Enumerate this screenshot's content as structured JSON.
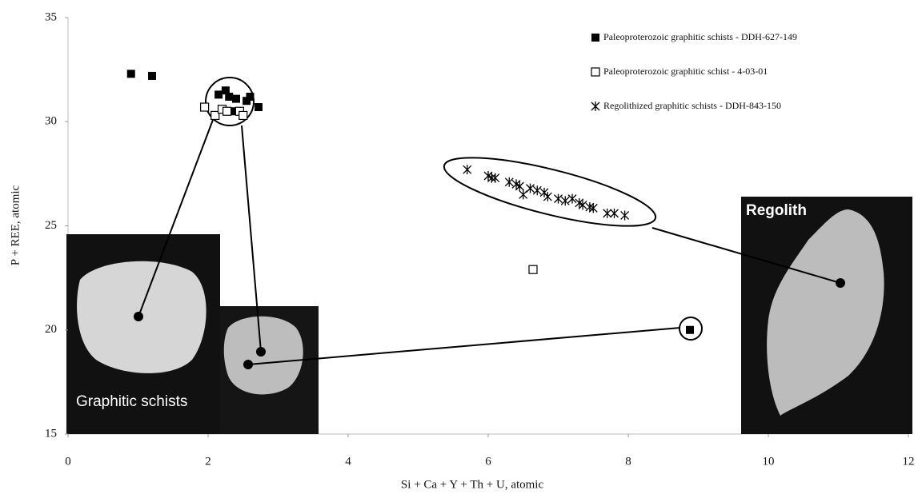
{
  "chart_data": {
    "type": "scatter",
    "x_label": "Si + Ca + Y + Th + U, atomic",
    "y_label": "P + REE, atomic",
    "xlim": [
      0,
      12
    ],
    "ylim": [
      15,
      35
    ],
    "xticks": [
      0,
      2,
      4,
      6,
      8,
      10,
      12
    ],
    "yticks": [
      15,
      20,
      25,
      30,
      35
    ],
    "grid": false,
    "legend": "top-right",
    "annotations": [
      "Graphitic  schists",
      "Regolith"
    ],
    "series": [
      {
        "name": "Paleoproterozoic graphitic schists - DDH-627-149",
        "color": "#000000",
        "marker": "filled-square",
        "x": [
          0.9,
          1.2,
          2.15,
          2.25,
          2.3,
          2.4,
          2.55,
          2.6,
          2.72,
          2.2,
          2.35,
          8.88
        ],
        "y": [
          32.3,
          32.2,
          31.3,
          31.5,
          31.2,
          31.1,
          31.0,
          31.2,
          30.7,
          30.6,
          30.5,
          20.0
        ]
      },
      {
        "name": "Paleoproterozoic graphitic schist - 4-03-01",
        "color": "#000000",
        "marker": "open-square",
        "x": [
          1.95,
          2.1,
          2.2,
          2.27,
          2.45,
          2.5,
          6.64
        ],
        "y": [
          30.7,
          30.3,
          30.6,
          30.5,
          30.5,
          30.3,
          22.9
        ]
      },
      {
        "name": "Regolithized graphitic schists - DDH-843-150",
        "color": "#000000",
        "marker": "asterisk",
        "x": [
          5.7,
          6.0,
          6.05,
          6.1,
          6.3,
          6.4,
          6.45,
          6.5,
          6.6,
          6.7,
          6.8,
          6.85,
          7.0,
          7.1,
          7.2,
          7.3,
          7.35,
          7.45,
          7.5,
          7.7,
          7.8,
          7.95
        ],
        "y": [
          27.7,
          27.4,
          27.3,
          27.3,
          27.1,
          27.0,
          26.9,
          26.5,
          26.8,
          26.7,
          26.6,
          26.4,
          26.3,
          26.2,
          26.3,
          26.1,
          26.0,
          25.9,
          25.85,
          25.6,
          25.6,
          25.5
        ]
      }
    ]
  }
}
